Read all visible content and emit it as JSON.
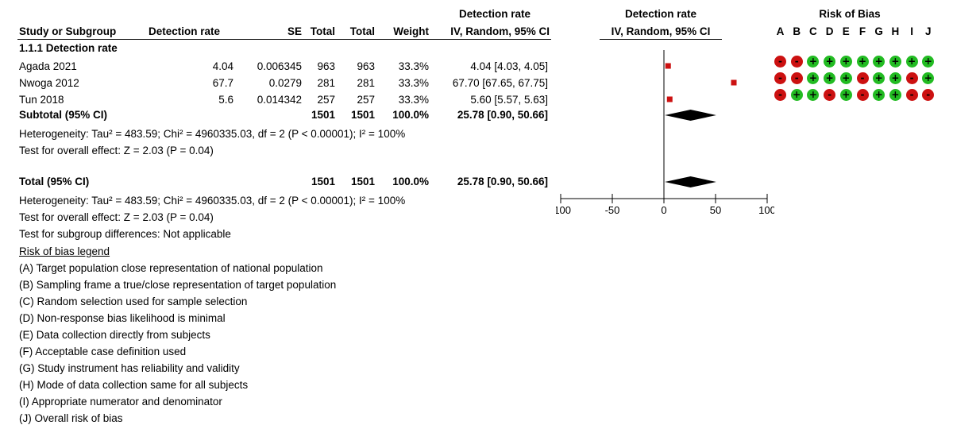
{
  "headers": {
    "study": "Study or Subgroup",
    "detection_rate": "Detection rate",
    "se": "SE",
    "total1": "Total",
    "total2": "Total",
    "weight": "Weight",
    "effect_top": "Detection rate",
    "effect_bottom": "IV, Random, 95% CI",
    "plot_top": "Detection rate",
    "plot_bottom": "IV, Random, 95% CI",
    "rob_title": "Risk of Bias",
    "rob_letters": [
      "A",
      "B",
      "C",
      "D",
      "E",
      "F",
      "G",
      "H",
      "I",
      "J"
    ]
  },
  "subgroup_title": "1.1.1 Detection rate",
  "studies": [
    {
      "name": "Agada 2021",
      "rate": "4.04",
      "se": "0.006345",
      "total1": "963",
      "total2": "963",
      "weight": "33.3%",
      "ci": "4.04 [4.03, 4.05]"
    },
    {
      "name": "Nwoga 2012",
      "rate": "67.7",
      "se": "0.0279",
      "total1": "281",
      "total2": "281",
      "weight": "33.3%",
      "ci": "67.70 [67.65, 67.75]"
    },
    {
      "name": "Tun 2018",
      "rate": "5.6",
      "se": "0.014342",
      "total1": "257",
      "total2": "257",
      "weight": "33.3%",
      "ci": "5.60 [5.57, 5.63]"
    }
  ],
  "subtotal": {
    "label": "Subtotal (95% CI)",
    "total1": "1501",
    "total2": "1501",
    "weight": "100.0%",
    "ci": "25.78 [0.90, 50.66]"
  },
  "heterogeneity1": "Heterogeneity: Tau² = 483.59; Chi² = 4960335.03, df = 2 (P < 0.00001); I² = 100%",
  "overall_effect1": "Test for overall effect: Z = 2.03 (P = 0.04)",
  "total": {
    "label": "Total (95% CI)",
    "total1": "1501",
    "total2": "1501",
    "weight": "100.0%",
    "ci": "25.78 [0.90, 50.66]"
  },
  "heterogeneity2": "Heterogeneity: Tau² = 483.59; Chi² = 4960335.03, df = 2 (P < 0.00001); I² = 100%",
  "overall_effect2": "Test for overall effect: Z = 2.03 (P = 0.04)",
  "subgroup_diff": "Test for subgroup differences: Not applicable",
  "legend": {
    "title": "Risk of bias legend",
    "items": [
      {
        "key": "(A)",
        "text": " Target population close representation of national population"
      },
      {
        "key": "(B)",
        "text": " Sampling frame a true/close representation of target population"
      },
      {
        "key": "(C)",
        "text": " Random selection used for sample selection"
      },
      {
        "key": "(D)",
        "text": " Non-response bias likelihood is minimal"
      },
      {
        "key": "(E)",
        "text": " Data collection directly from subjects"
      },
      {
        "key": "(F)",
        "text": " Acceptable case definition used"
      },
      {
        "key": "(G)",
        "text": " Study instrument has reliability and validity"
      },
      {
        "key": "(H)",
        "text": " Mode of data collection same for all subjects"
      },
      {
        "key": "(I)",
        "text": " Appropriate numerator and denominator"
      },
      {
        "key": "(J)",
        "text": " Overall risk of bias"
      }
    ]
  },
  "rob": [
    [
      "-",
      "-",
      "+",
      "+",
      "+",
      "+",
      "+",
      "+",
      "+",
      "+"
    ],
    [
      "-",
      "-",
      "+",
      "+",
      "+",
      "-",
      "+",
      "+",
      "-",
      "+"
    ],
    [
      "-",
      "+",
      "+",
      "-",
      "+",
      "-",
      "+",
      "+",
      "-",
      "-"
    ]
  ],
  "colors": {
    "low_risk": "#22bb22",
    "high_risk": "#cc1111",
    "square": "#cc1111",
    "diamond": "#000000"
  },
  "chart_data": {
    "type": "forest",
    "xlim": [
      -100,
      100
    ],
    "x_ticks": [
      -100,
      -50,
      0,
      50,
      100
    ],
    "x_tick_labels": [
      "-100",
      "-50",
      "0",
      "50",
      "100"
    ],
    "points": [
      {
        "study": "Agada 2021",
        "estimate": 4.04,
        "lower": 4.03,
        "upper": 4.05,
        "weight": 33.3
      },
      {
        "study": "Nwoga 2012",
        "estimate": 67.7,
        "lower": 67.65,
        "upper": 67.75,
        "weight": 33.3
      },
      {
        "study": "Tun 2018",
        "estimate": 5.6,
        "lower": 5.57,
        "upper": 5.63,
        "weight": 33.3
      }
    ],
    "pooled": [
      {
        "label": "Subtotal (95% CI)",
        "estimate": 25.78,
        "lower": 0.9,
        "upper": 50.66
      },
      {
        "label": "Total (95% CI)",
        "estimate": 25.78,
        "lower": 0.9,
        "upper": 50.66
      }
    ]
  }
}
